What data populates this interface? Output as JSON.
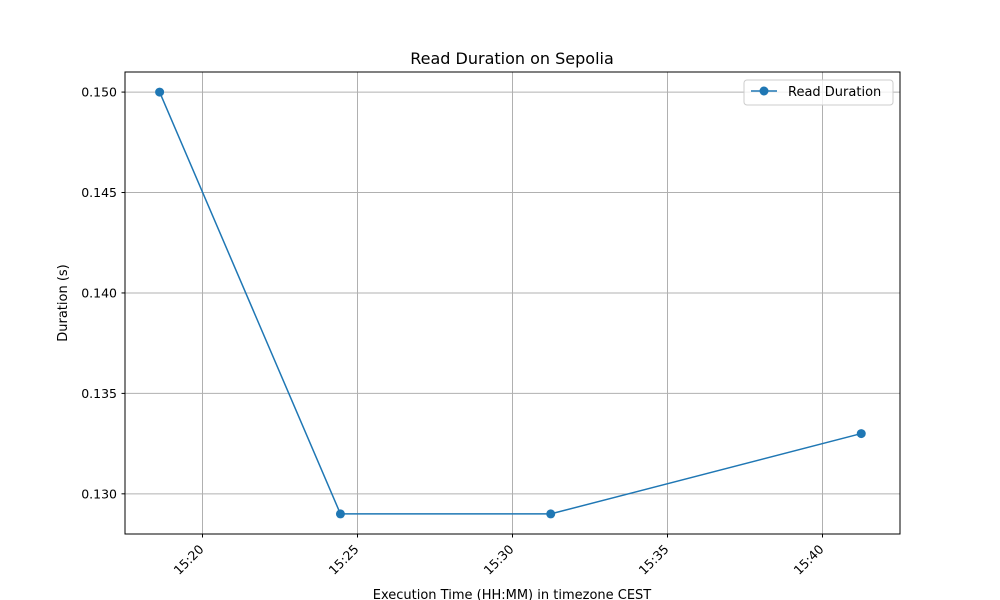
{
  "chart_data": {
    "type": "line",
    "title": "Read Duration on Sepolia",
    "xlabel": "Execution Time (HH:MM) in timezone CEST",
    "ylabel": "Duration (s)",
    "x_unit": "HH:MM",
    "x_ticks": [
      "15:20",
      "15:25",
      "15:30",
      "15:35",
      "15:40"
    ],
    "y_ticks": [
      "0.130",
      "0.135",
      "0.140",
      "0.145",
      "0.150"
    ],
    "xlim": [
      "15:17:30",
      "15:42:30"
    ],
    "ylim": [
      0.128,
      0.151
    ],
    "grid": true,
    "legend_position": "top-right",
    "series": [
      {
        "name": "Read Duration",
        "color": "#1f77b4",
        "marker": "circle",
        "points": [
          {
            "x": "15:18:37",
            "y": 0.15
          },
          {
            "x": "15:24:27",
            "y": 0.129
          },
          {
            "x": "15:31:14",
            "y": 0.129
          },
          {
            "x": "15:41:15",
            "y": 0.133
          }
        ]
      }
    ]
  }
}
